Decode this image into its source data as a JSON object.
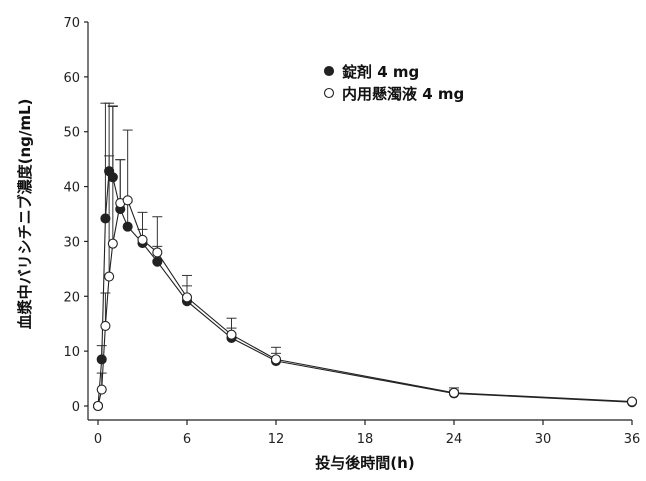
{
  "chart_data": {
    "type": "line",
    "xlabel": "投与後時間(h)",
    "ylabel": "血漿中バリシチニブ濃度(ng/mL)",
    "xlim": [
      0,
      36
    ],
    "ylim": [
      0,
      70
    ],
    "x_ticks": [
      0,
      6,
      12,
      18,
      24,
      30,
      36
    ],
    "y_ticks": [
      0,
      10,
      20,
      30,
      40,
      50,
      60,
      70
    ],
    "grid": false,
    "legend_position": "top-right",
    "series": [
      {
        "name": "錠剤 4 mg",
        "marker": "filled-circle",
        "color": "#222222",
        "points": [
          {
            "x": 0,
            "y": 0,
            "err": 0
          },
          {
            "x": 0.25,
            "y": 8.5,
            "err": 2.5
          },
          {
            "x": 0.5,
            "y": 34.2,
            "err": 21
          },
          {
            "x": 0.75,
            "y": 42.8,
            "err": 12.4
          },
          {
            "x": 1,
            "y": 41.7,
            "err": 13
          },
          {
            "x": 1.5,
            "y": 35.9,
            "err": 9
          },
          {
            "x": 2,
            "y": 32.7,
            "err": 4.5
          },
          {
            "x": 3,
            "y": 29.7,
            "err": 2.5
          },
          {
            "x": 4,
            "y": 26.3,
            "err": 2.8
          },
          {
            "x": 6,
            "y": 19.1,
            "err": 2.8
          },
          {
            "x": 9,
            "y": 12.4,
            "err": 1.8
          },
          {
            "x": 12,
            "y": 8.2,
            "err": 1.4
          },
          {
            "x": 24,
            "y": 2.3,
            "err": 0.6
          },
          {
            "x": 36,
            "y": 0.7,
            "err": 0.2
          }
        ]
      },
      {
        "name": "内用懸濁液 4 mg",
        "marker": "open-circle",
        "color": "#222222",
        "points": [
          {
            "x": 0,
            "y": 0,
            "err": 0
          },
          {
            "x": 0.25,
            "y": 3.0,
            "err": 3
          },
          {
            "x": 0.5,
            "y": 14.6,
            "err": 6
          },
          {
            "x": 0.75,
            "y": 23.6,
            "err": 22
          },
          {
            "x": 1,
            "y": 29.6,
            "err": 25
          },
          {
            "x": 1.5,
            "y": 37,
            "err": 7.9
          },
          {
            "x": 2,
            "y": 37.5,
            "err": 12.8
          },
          {
            "x": 3,
            "y": 30.3,
            "err": 5
          },
          {
            "x": 4,
            "y": 28,
            "err": 6.5
          },
          {
            "x": 6,
            "y": 19.8,
            "err": 4
          },
          {
            "x": 9,
            "y": 13,
            "err": 3
          },
          {
            "x": 12,
            "y": 8.5,
            "err": 2.2
          },
          {
            "x": 24,
            "y": 2.4,
            "err": 0.9
          },
          {
            "x": 36,
            "y": 0.8,
            "err": 0.3
          }
        ]
      }
    ]
  }
}
